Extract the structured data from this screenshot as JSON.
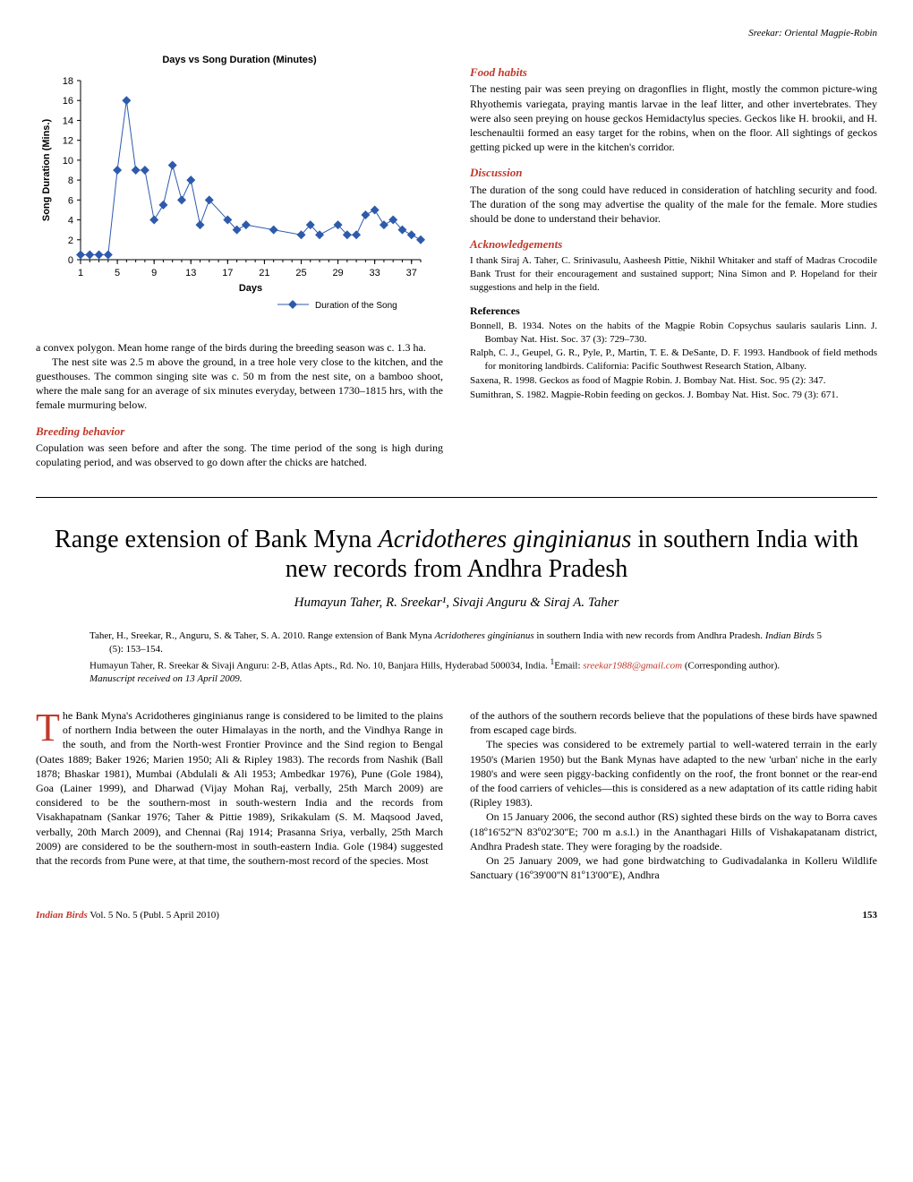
{
  "header": {
    "running": "Sreekar: Oriental Magpie-Robin"
  },
  "chart": {
    "type": "line-scatter",
    "title": "Days vs Song Duration (Minutes)",
    "xlabel": "Days",
    "ylabel": "Song Duration (Mins.)",
    "legend": "Duration of the Song",
    "label_fontsize": 11,
    "ylim": [
      0,
      18
    ],
    "ytick_step": 2,
    "xlim": [
      1,
      38
    ],
    "xtick_major_step": 4,
    "xtick_minor_step": 1,
    "x_values": [
      1,
      2,
      3,
      4,
      5,
      6,
      7,
      8,
      9,
      10,
      11,
      12,
      13,
      14,
      15,
      17,
      18,
      19,
      22,
      25,
      26,
      27,
      29,
      30,
      31,
      32,
      33,
      34,
      35,
      36,
      37,
      38
    ],
    "y_values": [
      0.5,
      0.5,
      0.5,
      0.5,
      9,
      16,
      9,
      9,
      4,
      5.5,
      9.5,
      6,
      8,
      3.5,
      6,
      4,
      3,
      3.5,
      3,
      2.5,
      3.5,
      2.5,
      3.5,
      2.5,
      2.5,
      4.5,
      5,
      3.5,
      4,
      3,
      2.5,
      2
    ],
    "line_color": "#2e5aac",
    "marker_color": "#2e5aac",
    "marker_shape": "diamond",
    "marker_size": 5,
    "line_width": 1,
    "background_color": "#ffffff",
    "axis_color": "#000000",
    "tick_color": "#000000"
  },
  "article1": {
    "para_convex": "a convex polygon. Mean home range of the birds during the breeding season was c. 1.3 ha.",
    "para_nest": "The nest site was 2.5 m above the ground, in a tree hole very close to the kitchen, and the guesthouses. The common singing site was c. 50 m from the nest site, on a bamboo shoot, where the male sang for an average of six minutes everyday, between 1730–1815 hrs, with the female murmuring below.",
    "breeding_head": "Breeding behavior",
    "breeding_body": "Copulation was seen before and after the song. The time period of the song is high during copulating period, and was observed to go down after the chicks are hatched.",
    "food_head": "Food habits",
    "food_body": "The nesting pair was seen preying on dragonflies in flight, mostly the common picture-wing Rhyothemis variegata, praying mantis larvae in the leaf litter, and other invertebrates. They were also seen preying on house geckos Hemidactylus species. Geckos like H. brookii, and H. leschenaultii formed an easy target for the robins, when on the floor. All sightings of geckos getting picked up were in the kitchen's corridor.",
    "discussion_head": "Discussion",
    "discussion_body": "The duration of the song could have reduced in consideration of hatchling security and food. The duration of the song may advertise the quality of the male for the female. More studies should be done to understand their behavior.",
    "ack_head": "Acknowledgements",
    "ack_body": "I thank Siraj A. Taher, C. Srinivasulu, Aasheesh Pittie, Nikhil Whitaker and staff of Madras Crocodile Bank Trust for their encouragement and sustained support; Nina Simon and P. Hopeland for their suggestions and help in the field.",
    "ref_head": "References",
    "refs": [
      "Bonnell, B. 1934. Notes on the habits of the Magpie Robin Copsychus saularis saularis Linn. J. Bombay Nat. Hist. Soc. 37 (3): 729–730.",
      "Ralph, C. J., Geupel, G. R., Pyle, P., Martin, T. E. & DeSante, D. F. 1993. Handbook of field methods for monitoring landbirds. California: Pacific Southwest Research Station, Albany.",
      "Saxena, R. 1998. Geckos as food of Magpie Robin. J. Bombay Nat. Hist. Soc. 95 (2): 347.",
      "Sumithran, S. 1982. Magpie-Robin feeding on geckos. J. Bombay Nat. Hist. Soc. 79 (3): 671."
    ]
  },
  "article2": {
    "title": "Range extension of Bank Myna Acridotheres ginginianus in southern India with new records from Andhra Pradesh",
    "authors": "Humayun Taher, R. Sreekar¹, Sivaji Anguru & Siraj A. Taher",
    "cite1": "Taher, H., Sreekar, R., Anguru, S. & Taher, S. A. 2010. Range extension of Bank Myna Acridotheres ginginianus in southern India with new records from Andhra Pradesh. Indian Birds 5 (5): 153–154.",
    "cite2": "Humayun Taher, R. Sreekar & Sivaji Anguru: 2-B, Atlas Apts., Rd. No. 10, Banjara Hills, Hyderabad 500034, India. ¹Email: sreekar1988@gmail.com (Corresponding author).",
    "cite_email": "sreekar1988@gmail.com",
    "cite3": "Manuscript received on 13 April 2009.",
    "body_left_first_letter": "T",
    "body_left": "he Bank Myna's Acridotheres ginginianus range is considered to be limited to the plains of northern India between the outer Himalayas in the north, and the Vindhya Range in the south, and from the North-west Frontier Province and the Sind region to Bengal (Oates 1889; Baker 1926; Marien 1950; Ali & Ripley 1983). The records from Nashik (Ball 1878; Bhaskar 1981), Mumbai (Abdulali & Ali 1953; Ambedkar 1976), Pune (Gole 1984), Goa (Lainer 1999), and Dharwad (Vijay Mohan Raj, verbally, 25th March 2009) are considered to be the southern-most in south-western India and the records from Visakhapatnam (Sankar 1976; Taher & Pittie 1989), Srikakulam (S. M. Maqsood Javed, verbally, 20th March 2009), and Chennai (Raj 1914; Prasanna Sriya, verbally, 25th March 2009) are considered to be the southern-most in south-eastern India. Gole (1984) suggested that the records from Pune were, at that time, the southern-most record of the species. Most",
    "body_right_p1": "of the authors of the southern records believe that the populations of these birds have spawned from escaped cage birds.",
    "body_right_p2": "The species was considered to be extremely partial to well-watered terrain in the early 1950's (Marien 1950) but the Bank Mynas have adapted to the new 'urban' niche in the early 1980's and were seen piggy-backing confidently on the roof, the front bonnet or the rear-end of the food carriers of vehicles—this is considered as a new adaptation of its cattle riding habit (Ripley 1983).",
    "body_right_p3": "On 15 January 2006, the second author (RS) sighted these birds on the way to Borra caves (18º16'52''N 83º02'30''E; 700 m a.s.l.) in the Ananthagari Hills of Vishakapatanam district, Andhra Pradesh state. They were foraging by the roadside.",
    "body_right_p4": "On 25 January 2009, we had gone birdwatching to Gudivadalanka in Kolleru Wildlife Sanctuary (16º39'00''N 81º13'00''E), Andhra"
  },
  "footer": {
    "journal": "Indian Birds",
    "vol": " Vol. 5 No. 5 (Publ. 5 April 2010)",
    "page": "153"
  }
}
